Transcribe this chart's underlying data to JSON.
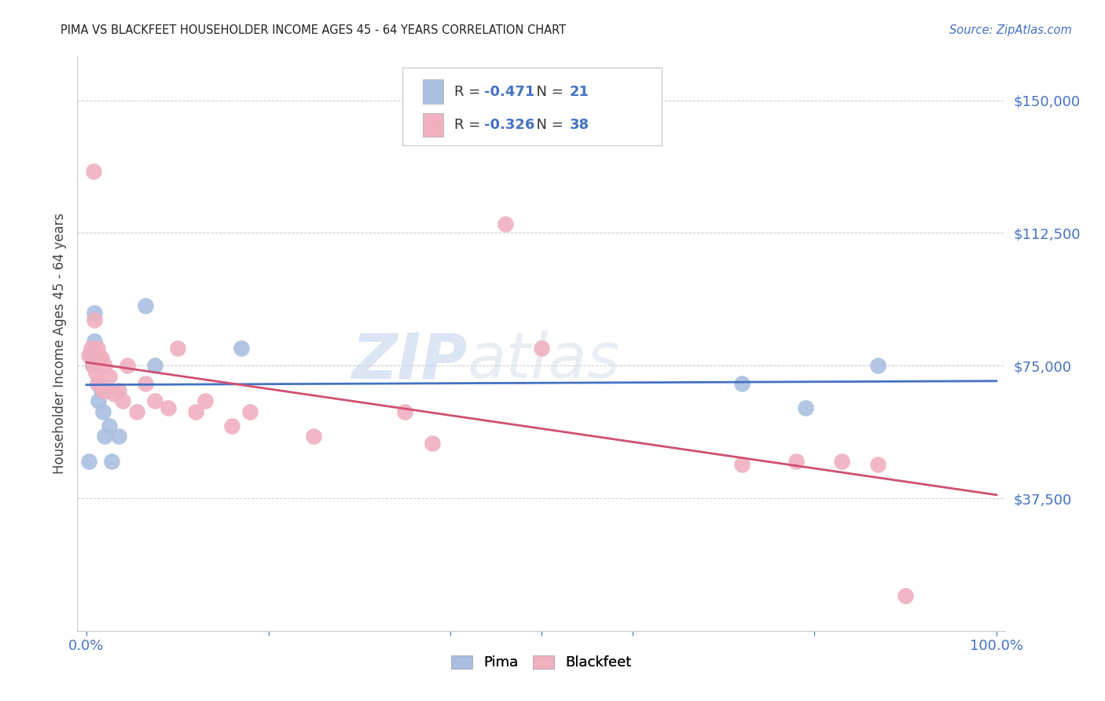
{
  "title": "PIMA VS BLACKFEET HOUSEHOLDER INCOME AGES 45 - 64 YEARS CORRELATION CHART",
  "source": "Source: ZipAtlas.com",
  "ylabel": "Householder Income Ages 45 - 64 years",
  "ytick_labels": [
    "$37,500",
    "$75,000",
    "$112,500",
    "$150,000"
  ],
  "ytick_values": [
    37500,
    75000,
    112500,
    150000
  ],
  "ylim_min": 0,
  "ylim_max": 162500,
  "xlim_min": -0.01,
  "xlim_max": 1.01,
  "pima_R": -0.471,
  "pima_N": 21,
  "blackfeet_R": -0.326,
  "blackfeet_N": 38,
  "pima_color": "#aabfe0",
  "blackfeet_color": "#f0b0c0",
  "pima_line_color": "#4472c4",
  "blackfeet_line_color": "#d05070",
  "legend_label_pima": "Pima",
  "legend_label_blackfeet": "Blackfeet",
  "watermark_zip": "ZIP",
  "watermark_atlas": "atlas",
  "background_color": "#ffffff",
  "grid_color": "#cccccc",
  "pima_x": [
    0.003,
    0.005,
    0.007,
    0.009,
    0.009,
    0.011,
    0.012,
    0.013,
    0.015,
    0.016,
    0.018,
    0.02,
    0.025,
    0.028,
    0.035,
    0.065,
    0.075,
    0.17,
    0.72,
    0.79,
    0.87
  ],
  "pima_y": [
    48000,
    78000,
    75000,
    90000,
    82000,
    78000,
    70000,
    65000,
    77000,
    68000,
    62000,
    55000,
    58000,
    48000,
    55000,
    92000,
    75000,
    80000,
    70000,
    63000,
    75000
  ],
  "blackfeet_x": [
    0.003,
    0.005,
    0.007,
    0.008,
    0.009,
    0.01,
    0.012,
    0.013,
    0.014,
    0.015,
    0.016,
    0.018,
    0.02,
    0.022,
    0.025,
    0.03,
    0.035,
    0.04,
    0.045,
    0.055,
    0.065,
    0.075,
    0.09,
    0.1,
    0.12,
    0.13,
    0.16,
    0.18,
    0.25,
    0.35,
    0.38,
    0.46,
    0.5,
    0.72,
    0.78,
    0.83,
    0.87,
    0.9
  ],
  "blackfeet_y": [
    78000,
    80000,
    75000,
    130000,
    88000,
    73000,
    80000,
    70000,
    78000,
    70000,
    77000,
    68000,
    75000,
    68000,
    72000,
    67000,
    68000,
    65000,
    75000,
    62000,
    70000,
    65000,
    63000,
    80000,
    62000,
    65000,
    58000,
    62000,
    55000,
    62000,
    53000,
    115000,
    80000,
    47000,
    48000,
    48000,
    47000,
    10000
  ]
}
